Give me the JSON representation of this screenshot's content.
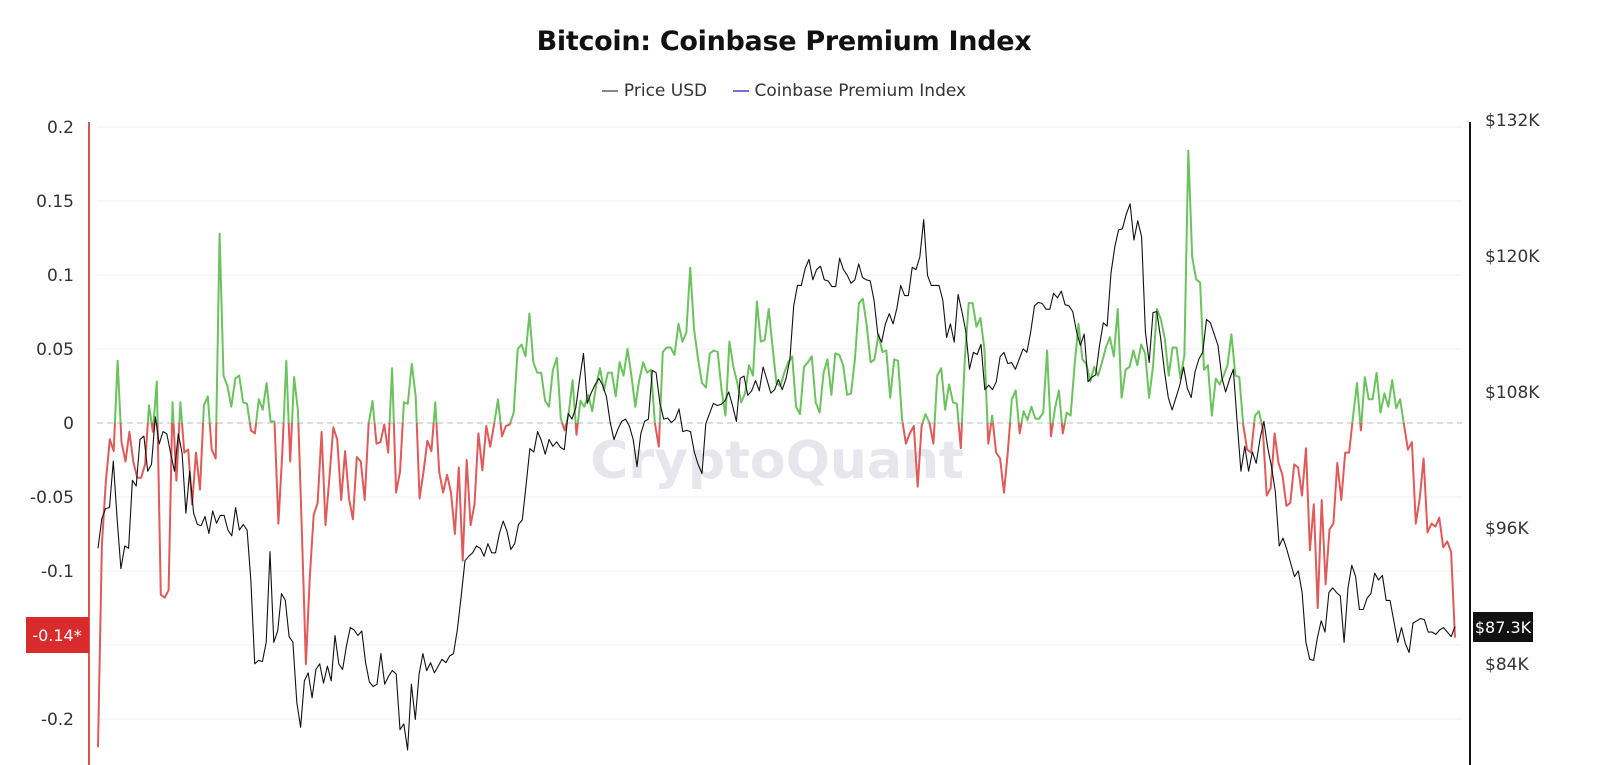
{
  "chart_data": {
    "type": "line",
    "title": "Bitcoin: Coinbase Premium Index",
    "legend": {
      "placement": "top-center",
      "entries": [
        {
          "label": "Price USD",
          "color": "#888888"
        },
        {
          "label": "Coinbase Premium Index",
          "color": "#7b6fd6"
        }
      ]
    },
    "watermark": "CryptoQuant",
    "grid": true,
    "left_axis": {
      "range": [
        -0.22,
        0.2
      ],
      "ticks": [
        {
          "value": 0.2,
          "label": "0.2"
        },
        {
          "value": 0.15,
          "label": "0.15"
        },
        {
          "value": 0.1,
          "label": "0.1"
        },
        {
          "value": 0.05,
          "label": "0.05"
        },
        {
          "value": 0,
          "label": "0"
        },
        {
          "value": -0.05,
          "label": "-0.05"
        },
        {
          "value": -0.1,
          "label": "-0.1"
        },
        {
          "value": -0.2,
          "label": "-0.2"
        }
      ],
      "current_value_label": "-0.14*"
    },
    "right_axis": {
      "range": [
        75,
        132
      ],
      "unit": "USD thousands",
      "ticks": [
        {
          "value": 132,
          "label": "$132K"
        },
        {
          "value": 120,
          "label": "$120K"
        },
        {
          "value": 108,
          "label": "$108K"
        },
        {
          "value": 96,
          "label": "$96K"
        },
        {
          "value": 84,
          "label": "$84K"
        }
      ],
      "current_value_label": "$87.3K"
    },
    "colors": {
      "premium_positive": "#6cc25e",
      "premium_negative": "#e05a5a",
      "price": "#111111",
      "left_axis": "#d9534f",
      "current_premium_badge": "#d92b2b",
      "current_price_badge": "#111111"
    },
    "series": [
      {
        "name": "Price USD",
        "axis": "right",
        "values": [
          94.2,
          96.8,
          97.7,
          97.8,
          101.9,
          96.8,
          92.4,
          94.4,
          94.2,
          100.2,
          99.7,
          103.8,
          104.1,
          101.0,
          101.6,
          105.8,
          103.4,
          104.5,
          104.3,
          102.6,
          101.0,
          104.3,
          102.6,
          97.3,
          101.0,
          97.3,
          96.3,
          96.2,
          97.0,
          95.5,
          97.5,
          96.4,
          97.1,
          97.1,
          95.8,
          95.3,
          97.8,
          95.8,
          96.3,
          95.8,
          91.3,
          84.0,
          84.3,
          84.2,
          85.9,
          93.9,
          85.9,
          86.9,
          90.2,
          89.6,
          86.4,
          85.9,
          80.6,
          78.4,
          82.5,
          83.2,
          81.0,
          83.5,
          84.0,
          82.3,
          83.8,
          82.5,
          86.5,
          84.0,
          83.5,
          85.6,
          87.2,
          87.0,
          86.5,
          86.9,
          84.1,
          82.4,
          82.0,
          82.2,
          84.9,
          82.2,
          82.9,
          83.4,
          83.1,
          78.2,
          78.7,
          76.4,
          82.2,
          79.1,
          83.1,
          84.9,
          83.4,
          84.1,
          83.2,
          83.8,
          84.4,
          84.1,
          84.7,
          84.9,
          87.0,
          89.9,
          93.1,
          93.5,
          93.8,
          94.4,
          94.2,
          93.5,
          94.6,
          93.8,
          93.8,
          95.5,
          96.6,
          95.7,
          94.1,
          94.6,
          96.3,
          96.7,
          99.8,
          103.0,
          102.7,
          104.5,
          103.7,
          102.5,
          103.8,
          103.2,
          103.6,
          103.1,
          102.9,
          106.1,
          105.6,
          106.6,
          109.1,
          111.4,
          107.0,
          107.9,
          108.6,
          109.2,
          108.6,
          107.6,
          105.3,
          103.8,
          104.7,
          105.4,
          105.6,
          105.0,
          103.8,
          101.4,
          104.3,
          105.4,
          105.6,
          109.9,
          109.7,
          107.0,
          105.6,
          105.7,
          105.3,
          105.6,
          106.5,
          104.5,
          104.6,
          104.5,
          102.7,
          101.6,
          100.8,
          105.2,
          106.1,
          107.0,
          106.8,
          106.9,
          107.2,
          108.0,
          106.8,
          105.4,
          109.2,
          109.4,
          107.7,
          108.1,
          109.0,
          108.1,
          110.2,
          109.1,
          107.9,
          108.2,
          109.1,
          108.2,
          109.2,
          110.9,
          115.6,
          117.4,
          117.4,
          118.9,
          119.7,
          117.9,
          118.8,
          119.1,
          117.9,
          117.8,
          117.3,
          117.3,
          119.8,
          118.8,
          118.3,
          117.6,
          117.9,
          119.3,
          118.1,
          117.9,
          117.8,
          116.1,
          113.1,
          112.4,
          114.0,
          114.9,
          114.0,
          115.4,
          117.4,
          116.5,
          116.5,
          119.0,
          118.8,
          119.9,
          123.2,
          118.3,
          117.4,
          117.4,
          117.4,
          116.1,
          112.8,
          114.0,
          112.4,
          116.6,
          115.1,
          113.4,
          110.0,
          111.5,
          111.3,
          112.2,
          108.2,
          108.6,
          108.2,
          108.9,
          111.1,
          111.5,
          110.5,
          110.6,
          110.0,
          110.9,
          111.8,
          111.5,
          113.3,
          115.6,
          115.9,
          115.8,
          115.3,
          115.3,
          116.7,
          116.3,
          116.9,
          115.7,
          115.6,
          115.1,
          113.3,
          112.1,
          113.1,
          108.9,
          109.3,
          109.5,
          112.1,
          114.1,
          113.8,
          118.5,
          120.8,
          122.3,
          122.4,
          123.7,
          124.6,
          121.4,
          123.1,
          121.7,
          113.3,
          110.6,
          115.0,
          115.1,
          112.7,
          109.8,
          107.5,
          106.4,
          107.5,
          108.6,
          110.2,
          108.3,
          107.5,
          109.8,
          110.9,
          111.5,
          114.4,
          114.1,
          113.1,
          112.1,
          109.3,
          108.0,
          109.1,
          110.0,
          105.4,
          101.0,
          103.2,
          101.0,
          102.7,
          101.7,
          103.9,
          105.4,
          103.1,
          101.4,
          99.2,
          94.4,
          95.1,
          94.1,
          92.9,
          91.7,
          92.2,
          90.3,
          85.9,
          84.4,
          84.3,
          86.3,
          87.8,
          86.8,
          90.3,
          90.7,
          90.3,
          90.0,
          85.9,
          90.7,
          92.7,
          91.7,
          88.8,
          88.8,
          89.8,
          90.2,
          92.0,
          91.4,
          91.8,
          89.6,
          89.6,
          87.8,
          85.9,
          87.2,
          85.8,
          85.0,
          87.6,
          87.8,
          88.0,
          87.9,
          86.8,
          86.8,
          86.6,
          87.0,
          87.2,
          86.8,
          86.4,
          87.3
        ]
      },
      {
        "name": "Coinbase Premium Index",
        "axis": "left",
        "values": [
          -0.219,
          -0.082,
          -0.04,
          -0.011,
          -0.019,
          0.042,
          -0.013,
          -0.026,
          -0.006,
          -0.026,
          -0.037,
          -0.037,
          -0.028,
          0.012,
          -0.006,
          0.028,
          -0.116,
          -0.118,
          -0.113,
          0.014,
          -0.039,
          0.014,
          -0.02,
          -0.018,
          -0.055,
          -0.02,
          -0.045,
          0.012,
          0.018,
          -0.018,
          -0.024,
          0.128,
          0.032,
          0.025,
          0.011,
          0.03,
          0.032,
          0.014,
          0.013,
          -0.005,
          -0.007,
          0.016,
          0.009,
          0.027,
          0.001,
          0.001,
          -0.068,
          -0.02,
          0.042,
          -0.026,
          0.031,
          0.008,
          -0.074,
          -0.163,
          -0.104,
          -0.062,
          -0.054,
          -0.006,
          -0.069,
          -0.037,
          -0.003,
          -0.011,
          -0.052,
          -0.019,
          -0.051,
          -0.065,
          -0.023,
          -0.026,
          -0.052,
          -0.001,
          0.015,
          -0.014,
          -0.013,
          -0.001,
          -0.02,
          0.037,
          -0.047,
          -0.033,
          0.014,
          0.013,
          0.04,
          0.018,
          -0.051,
          -0.033,
          -0.012,
          -0.019,
          0.014,
          -0.033,
          -0.047,
          -0.035,
          -0.047,
          -0.075,
          -0.03,
          -0.093,
          -0.025,
          -0.069,
          -0.055,
          -0.007,
          -0.032,
          -0.002,
          -0.016,
          -0.001,
          0.016,
          -0.009,
          -0.002,
          -0.001,
          0.007,
          0.05,
          0.053,
          0.045,
          0.074,
          0.041,
          0.034,
          0.034,
          0.015,
          0.011,
          0.036,
          0.044,
          0.003,
          -0.005,
          0.006,
          0.029,
          -0.008,
          0.015,
          0.011,
          0.019,
          0.008,
          0.025,
          0.037,
          0.022,
          0.034,
          0.034,
          0.018,
          0.041,
          0.032,
          0.05,
          0.032,
          0.011,
          0.029,
          0.041,
          0.034,
          0.036,
          0.0,
          -0.016,
          0.048,
          0.051,
          0.051,
          0.046,
          0.067,
          0.055,
          0.061,
          0.105,
          0.063,
          0.043,
          0.027,
          0.024,
          0.047,
          0.049,
          0.048,
          0.022,
          0.005,
          0.055,
          0.038,
          0.027,
          0.014,
          0.02,
          0.039,
          0.032,
          0.082,
          0.055,
          0.056,
          0.077,
          0.051,
          0.027,
          0.025,
          0.034,
          0.041,
          0.045,
          0.011,
          0.006,
          0.038,
          0.041,
          0.045,
          0.014,
          0.007,
          0.034,
          0.043,
          0.019,
          0.047,
          0.046,
          0.039,
          0.019,
          0.02,
          0.043,
          0.081,
          0.084,
          0.066,
          0.041,
          0.043,
          0.06,
          0.048,
          0.049,
          0.017,
          0.043,
          0.042,
          0.003,
          -0.014,
          -0.007,
          -0.002,
          -0.043,
          -0.002,
          0.006,
          0.0,
          -0.014,
          0.032,
          0.037,
          0.009,
          0.026,
          0.014,
          0.013,
          -0.017,
          0.043,
          0.081,
          0.081,
          0.065,
          0.071,
          0.05,
          -0.014,
          0.005,
          -0.02,
          -0.024,
          -0.047,
          -0.019,
          0.016,
          0.022,
          -0.007,
          0.008,
          0.002,
          0.011,
          0.003,
          0.003,
          0.007,
          0.049,
          -0.009,
          0.01,
          0.022,
          -0.007,
          0.007,
          0.005,
          0.039,
          0.067,
          0.043,
          0.04,
          0.028,
          0.038,
          0.032,
          0.041,
          0.051,
          0.058,
          0.045,
          0.077,
          0.017,
          0.036,
          0.038,
          0.049,
          0.039,
          0.053,
          0.047,
          0.017,
          0.038,
          0.077,
          0.07,
          0.057,
          0.032,
          0.051,
          0.051,
          0.03,
          0.046,
          0.184,
          0.112,
          0.097,
          0.095,
          0.036,
          0.039,
          0.005,
          0.03,
          0.026,
          0.032,
          0.039,
          0.06,
          0.032,
          0.031,
          -0.001,
          -0.018,
          -0.02,
          0.005,
          0.008,
          -0.004,
          -0.049,
          -0.044,
          -0.007,
          -0.027,
          -0.035,
          -0.056,
          -0.054,
          -0.028,
          -0.03,
          -0.049,
          -0.017,
          -0.086,
          -0.055,
          -0.125,
          -0.052,
          -0.109,
          -0.072,
          -0.068,
          -0.027,
          -0.052,
          -0.02,
          -0.02,
          0.004,
          0.027,
          -0.005,
          0.031,
          0.016,
          0.016,
          0.034,
          0.007,
          0.02,
          0.011,
          0.029,
          0.01,
          0.016,
          -0.001,
          -0.018,
          -0.013,
          -0.068,
          -0.051,
          -0.024,
          -0.074,
          -0.068,
          -0.07,
          -0.064,
          -0.084,
          -0.08,
          -0.087,
          -0.145
        ]
      }
    ]
  }
}
